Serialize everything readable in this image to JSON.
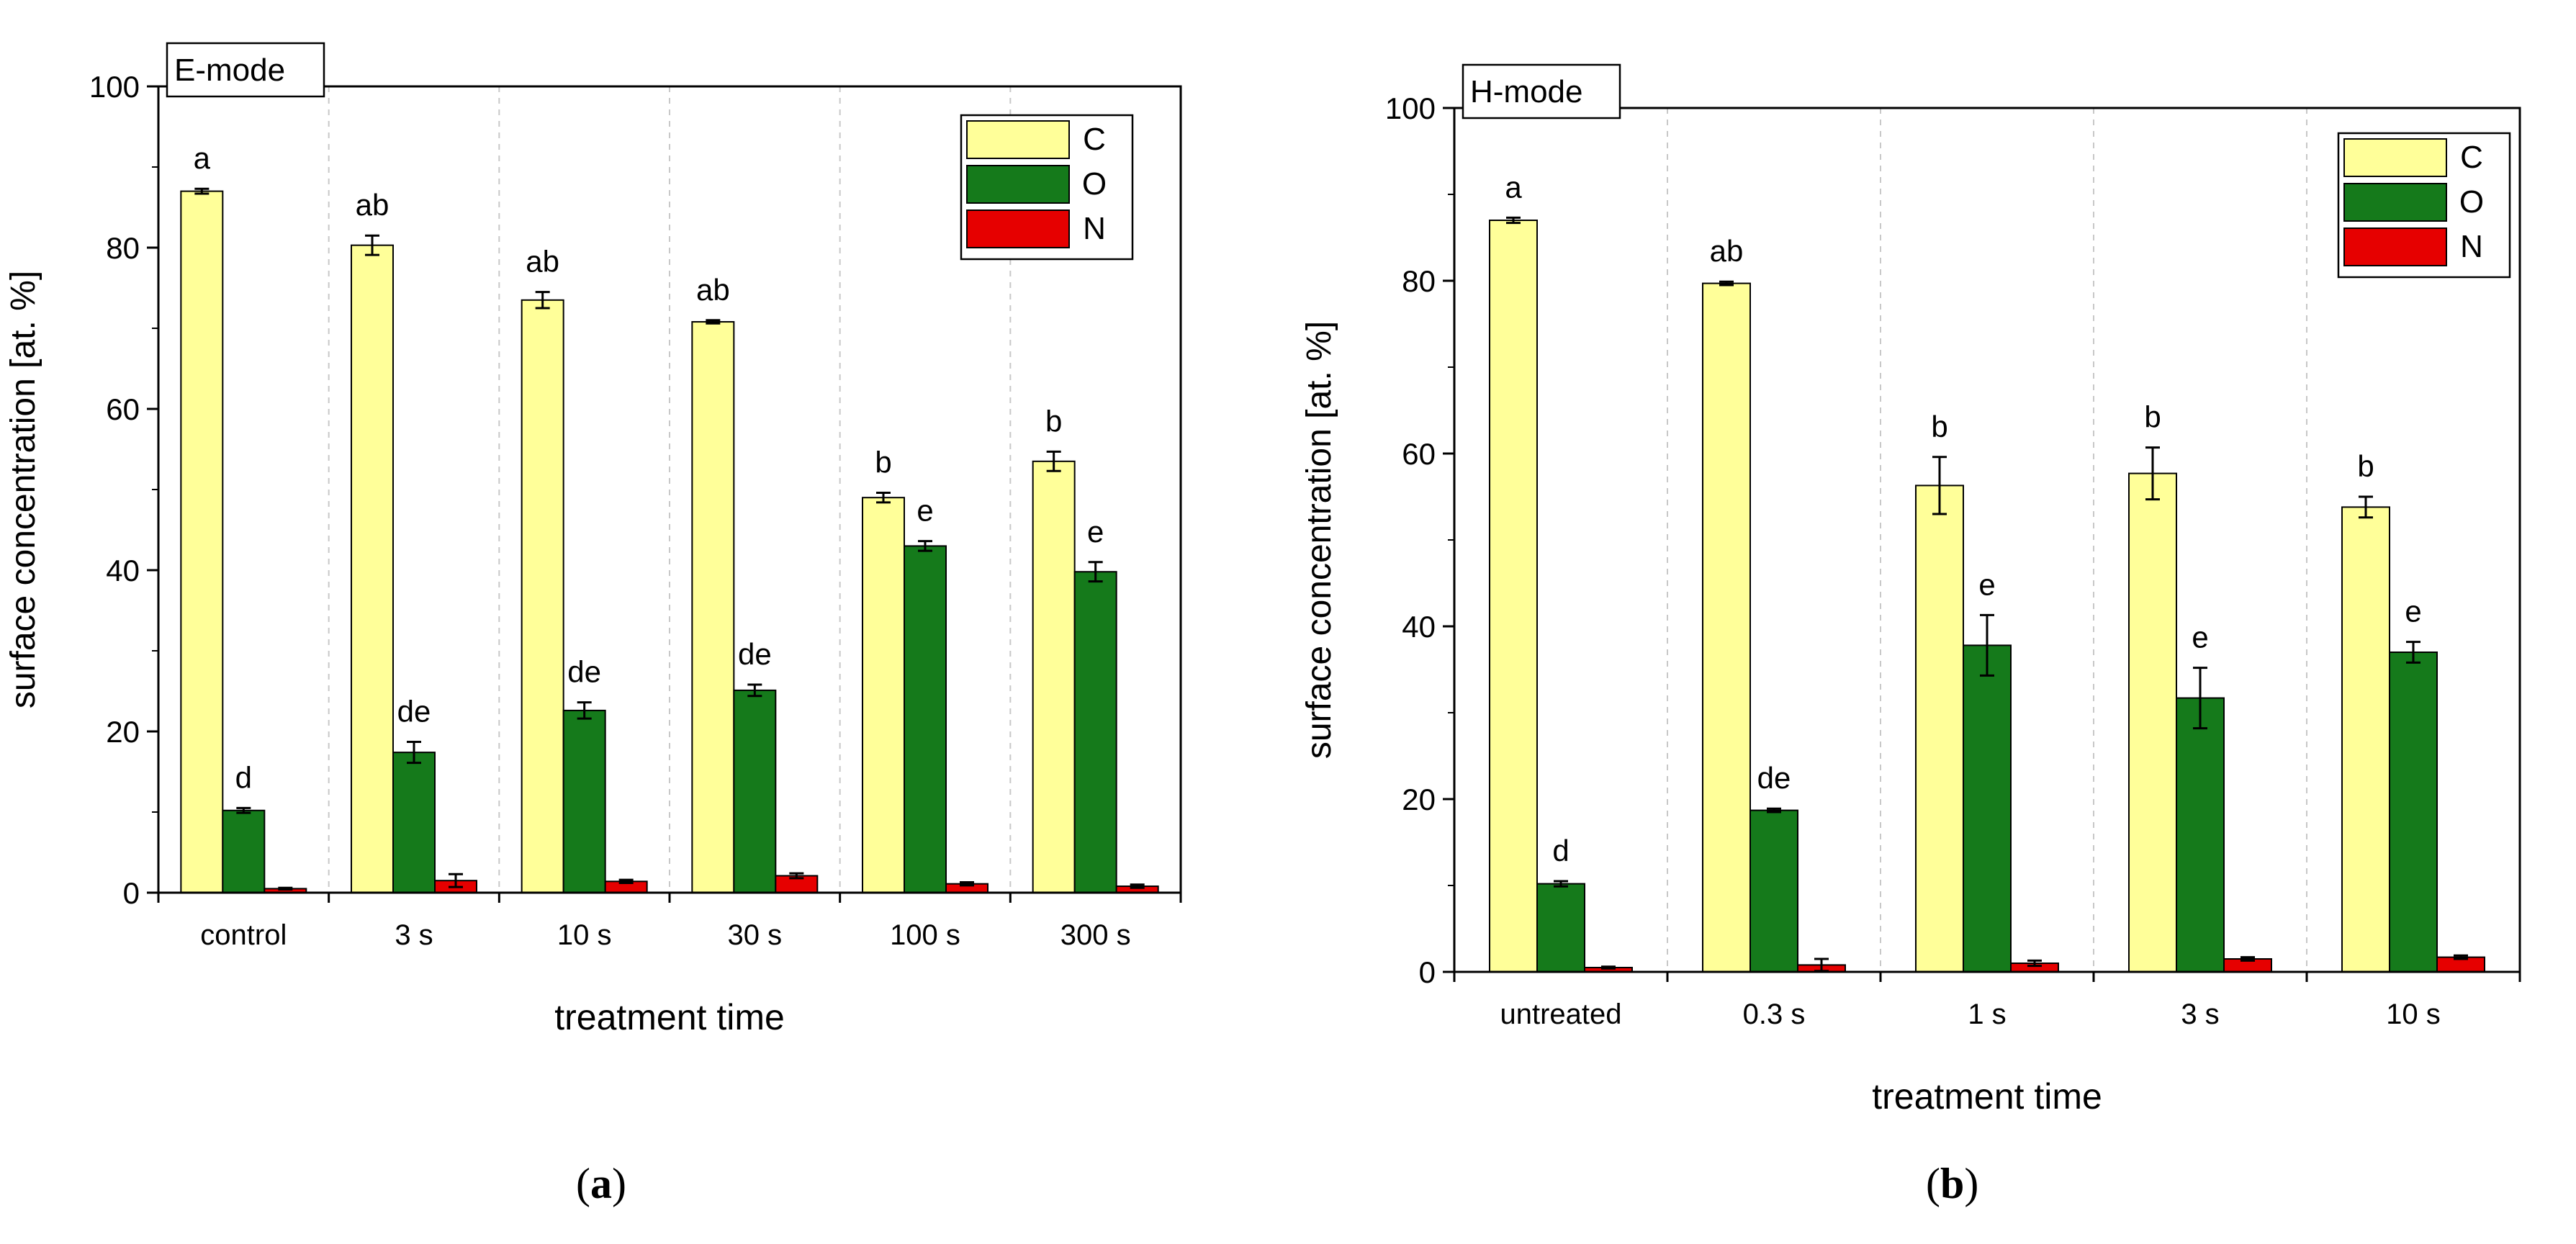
{
  "colors": {
    "C": "#FFFF99",
    "O": "#157A1B",
    "N": "#E60000",
    "stroke": "#000000",
    "grid": "#C8C8C8"
  },
  "chart_data": [
    {
      "type": "bar",
      "panel_label": "E-mode",
      "caption": "a",
      "xlabel": "treatment time",
      "ylabel": "surface concentration [at. %]",
      "ylim": [
        0,
        100
      ],
      "yticks": [
        0,
        20,
        40,
        60,
        80,
        100
      ],
      "grid": "vertical dashed separators",
      "legend_position": "top-right",
      "categories": [
        "control",
        "3 s",
        "10 s",
        "30 s",
        "100 s",
        "300 s"
      ],
      "series": [
        {
          "name": "C",
          "values": [
            87,
            80.3,
            73.5,
            70.8,
            49,
            53.5
          ],
          "errors": [
            0.3,
            1.2,
            1.0,
            0.2,
            0.6,
            1.2
          ],
          "labels": [
            "a",
            "ab",
            "ab",
            "ab",
            "b",
            "b"
          ]
        },
        {
          "name": "O",
          "values": [
            10.2,
            17.4,
            22.6,
            25.1,
            43,
            39.8
          ],
          "errors": [
            0.3,
            1.3,
            1.0,
            0.7,
            0.6,
            1.2
          ],
          "labels": [
            "d",
            "de",
            "de",
            "de",
            "e",
            "e"
          ]
        },
        {
          "name": "N",
          "values": [
            0.5,
            1.5,
            1.4,
            2.1,
            1.1,
            0.8
          ],
          "errors": [
            0.1,
            0.8,
            0.2,
            0.3,
            0.2,
            0.2
          ],
          "labels": [
            "",
            "",
            "",
            "",
            "",
            ""
          ]
        }
      ]
    },
    {
      "type": "bar",
      "panel_label": "H-mode",
      "caption": "b",
      "xlabel": "treatment time",
      "ylabel": "surface concentration [at. %]",
      "ylim": [
        0,
        100
      ],
      "yticks": [
        0,
        20,
        40,
        60,
        80,
        100
      ],
      "grid": "vertical dashed separators",
      "legend_position": "top-right",
      "categories": [
        "untreated",
        "0.3 s",
        "1 s",
        "3 s",
        "10 s"
      ],
      "series": [
        {
          "name": "C",
          "values": [
            87,
            79.7,
            56.3,
            57.7,
            53.8
          ],
          "errors": [
            0.3,
            0.2,
            3.3,
            3.0,
            1.2
          ],
          "labels": [
            "a",
            "ab",
            "b",
            "b",
            "b"
          ]
        },
        {
          "name": "O",
          "values": [
            10.2,
            18.7,
            37.8,
            31.7,
            37
          ],
          "errors": [
            0.3,
            0.2,
            3.5,
            3.5,
            1.2
          ],
          "labels": [
            "d",
            "de",
            "e",
            "e",
            "e"
          ]
        },
        {
          "name": "N",
          "values": [
            0.5,
            0.8,
            1.0,
            1.5,
            1.7
          ],
          "errors": [
            0.1,
            0.7,
            0.3,
            0.2,
            0.2
          ],
          "labels": [
            "",
            "",
            "",
            "",
            ""
          ]
        }
      ]
    }
  ]
}
